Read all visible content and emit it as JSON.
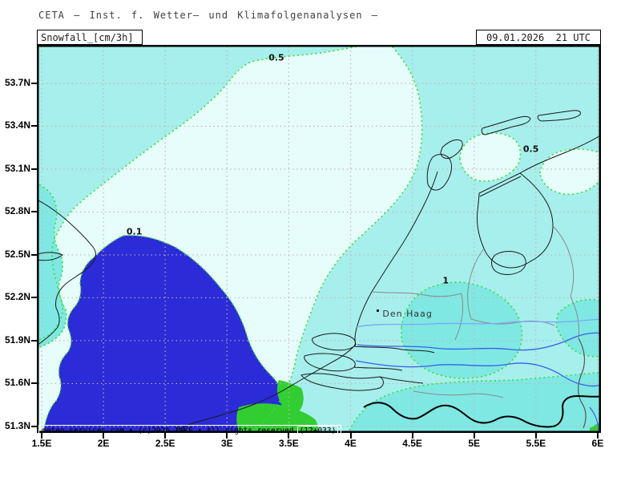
{
  "header": {
    "org": "CETA – Inst. f. Wetter– und Klimafolgenanalysen –"
  },
  "titlebar": {
    "product": "Snowfall_[cm/3h]",
    "valid": "09.01.2026  21 UTC"
  },
  "map": {
    "copyright_left": "meteo-services.com • (c)2026 IWKF • All rights reserved",
    "run_info": "(12+033)"
  },
  "chart_data": {
    "type": "heatmap",
    "title": "Snowfall_[cm/3h]",
    "valid_time": "09.01.2026 21 UTC",
    "x_axis": {
      "ticks": [
        "1.5E",
        "2E",
        "2.5E",
        "3E",
        "3.5E",
        "4E",
        "4.5E",
        "5E",
        "5.5E",
        "6E"
      ],
      "lon_values": [
        1.5,
        2,
        2.5,
        3,
        3.5,
        4,
        4.5,
        5,
        5.5,
        6
      ],
      "range_lon": [
        1.46,
        6.03
      ]
    },
    "y_axis": {
      "ticks": [
        "53.7N",
        "53.4N",
        "53.1N",
        "52.8N",
        "52.5N",
        "52.2N",
        "51.9N",
        "51.6N",
        "51.3N"
      ],
      "lat_values": [
        53.7,
        53.4,
        53.1,
        52.8,
        52.5,
        52.2,
        51.9,
        51.6,
        51.3
      ],
      "range_lat": [
        51.25,
        53.97
      ]
    },
    "contour_labels": [
      {
        "value": "0.5",
        "lon": 3.4,
        "lat": 53.88
      },
      {
        "value": "0.1",
        "lon": 2.25,
        "lat": 52.66
      },
      {
        "value": "0.5",
        "lon": 5.46,
        "lat": 53.24
      },
      {
        "value": "1",
        "lon": 4.77,
        "lat": 52.32
      }
    ],
    "city_labels": [
      {
        "name": "Den Haag",
        "lon": 4.22,
        "lat": 52.11
      }
    ],
    "grid": true,
    "legend_position": "none"
  },
  "colors": {
    "base_cyan": "#a7efec",
    "pale_band": "#e6fdfb",
    "teal_band": "#7fe8e3",
    "dark_blue": "#2b2bd7",
    "green_band": "#32cd32",
    "contour_green": "#35e035",
    "grid_gray": "#c2b2b2",
    "river_blue": "#3a5fe8",
    "river_light_blue": "#7fa6f5"
  }
}
